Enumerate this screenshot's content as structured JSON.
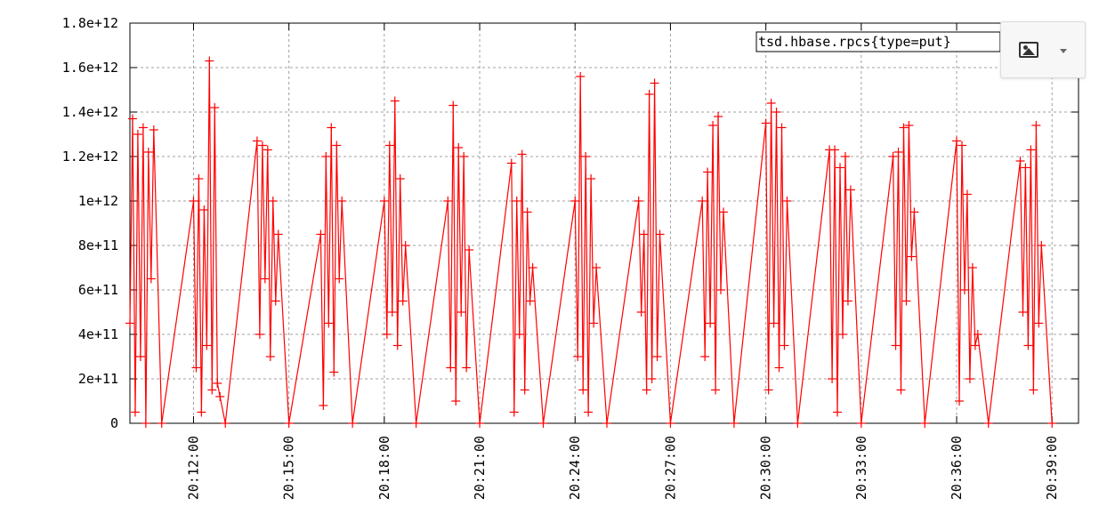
{
  "chart_data": {
    "type": "line",
    "title": "",
    "xlabel": "",
    "ylabel": "",
    "grid": true,
    "legend_placement": "top-right",
    "y_tick_labels": [
      "0",
      "2e+11",
      "4e+11",
      "6e+11",
      "8e+11",
      "1e+12",
      "1.2e+12",
      "1.4e+12",
      "1.6e+12",
      "1.8e+12"
    ],
    "y_ticks": [
      0,
      200000000000,
      400000000000,
      600000000000,
      800000000000,
      1000000000000,
      1200000000000,
      1400000000000,
      1600000000000,
      1800000000000
    ],
    "ylim": [
      0,
      1800000000000
    ],
    "x_tick_labels": [
      "20:12:00",
      "20:15:00",
      "20:18:00",
      "20:21:00",
      "20:24:00",
      "20:27:00",
      "20:30:00",
      "20:33:00",
      "20:36:00",
      "20:39:00"
    ],
    "x_ticks": [
      "20:12:00",
      "20:15:00",
      "20:18:00",
      "20:21:00",
      "20:24:00",
      "20:27:00",
      "20:30:00",
      "20:33:00",
      "20:36:00",
      "20:39:00"
    ],
    "xlim": [
      "20:10:00",
      "20:39:50"
    ],
    "series": [
      {
        "name": "tsd.hbase.rpcs{type=put}",
        "color": "#ff0000",
        "marker": "plus",
        "x": [
          "20:10:00",
          "20:10:05",
          "20:10:10",
          "20:10:15",
          "20:10:20",
          "20:10:25",
          "20:10:30",
          "20:10:35",
          "20:10:40",
          "20:10:45",
          "20:11:00",
          "20:12:00",
          "20:12:05",
          "20:12:10",
          "20:12:15",
          "20:12:20",
          "20:12:25",
          "20:12:30",
          "20:12:35",
          "20:12:40",
          "20:12:45",
          "20:12:50",
          "20:13:00",
          "20:14:00",
          "20:14:05",
          "20:14:10",
          "20:14:15",
          "20:14:20",
          "20:14:25",
          "20:14:30",
          "20:14:35",
          "20:14:40",
          "20:15:00",
          "20:16:00",
          "20:16:05",
          "20:16:10",
          "20:16:15",
          "20:16:20",
          "20:16:25",
          "20:16:30",
          "20:16:35",
          "20:16:40",
          "20:17:00",
          "20:18:00",
          "20:18:05",
          "20:18:10",
          "20:18:15",
          "20:18:20",
          "20:18:25",
          "20:18:30",
          "20:18:35",
          "20:18:40",
          "20:19:00",
          "20:20:00",
          "20:20:05",
          "20:20:10",
          "20:20:15",
          "20:20:20",
          "20:20:25",
          "20:20:30",
          "20:20:35",
          "20:20:40",
          "20:21:00",
          "20:22:00",
          "20:22:05",
          "20:22:10",
          "20:22:15",
          "20:22:20",
          "20:22:25",
          "20:22:30",
          "20:22:35",
          "20:22:40",
          "20:23:00",
          "20:24:00",
          "20:24:05",
          "20:24:10",
          "20:24:15",
          "20:24:20",
          "20:24:25",
          "20:24:30",
          "20:24:35",
          "20:24:40",
          "20:25:00",
          "20:26:00",
          "20:26:05",
          "20:26:10",
          "20:26:15",
          "20:26:20",
          "20:26:25",
          "20:26:30",
          "20:26:35",
          "20:26:40",
          "20:27:00",
          "20:28:00",
          "20:28:05",
          "20:28:10",
          "20:28:15",
          "20:28:20",
          "20:28:25",
          "20:28:30",
          "20:28:35",
          "20:28:40",
          "20:29:00",
          "20:30:00",
          "20:30:05",
          "20:30:10",
          "20:30:15",
          "20:30:20",
          "20:30:25",
          "20:30:30",
          "20:30:35",
          "20:30:40",
          "20:31:00",
          "20:32:00",
          "20:32:05",
          "20:32:10",
          "20:32:15",
          "20:32:20",
          "20:32:25",
          "20:32:30",
          "20:32:35",
          "20:32:40",
          "20:33:00",
          "20:34:00",
          "20:34:05",
          "20:34:10",
          "20:34:15",
          "20:34:20",
          "20:34:25",
          "20:34:30",
          "20:34:35",
          "20:34:40",
          "20:35:00",
          "20:36:00",
          "20:36:05",
          "20:36:10",
          "20:36:15",
          "20:36:20",
          "20:36:25",
          "20:36:30",
          "20:36:35",
          "20:36:40",
          "20:37:00",
          "20:38:00",
          "20:38:05",
          "20:38:10",
          "20:38:15",
          "20:38:20",
          "20:38:25",
          "20:38:30",
          "20:38:35",
          "20:38:40",
          "20:39:00"
        ],
        "y": [
          450000000000,
          1370000000000,
          50000000000,
          1300000000000,
          300000000000,
          1330000000000,
          0,
          1220000000000,
          650000000000,
          1320000000000,
          0,
          1000000000000,
          250000000000,
          1100000000000,
          50000000000,
          960000000000,
          350000000000,
          1630000000000,
          150000000000,
          1420000000000,
          180000000000,
          120000000000,
          0,
          1270000000000,
          400000000000,
          1250000000000,
          650000000000,
          1230000000000,
          300000000000,
          1000000000000,
          550000000000,
          850000000000,
          0,
          850000000000,
          80000000000,
          1200000000000,
          450000000000,
          1330000000000,
          230000000000,
          1250000000000,
          650000000000,
          1000000000000,
          0,
          1000000000000,
          400000000000,
          1250000000000,
          500000000000,
          1450000000000,
          350000000000,
          1100000000000,
          550000000000,
          800000000000,
          0,
          1000000000000,
          250000000000,
          1430000000000,
          100000000000,
          1240000000000,
          500000000000,
          1200000000000,
          250000000000,
          780000000000,
          0,
          1170000000000,
          50000000000,
          1000000000000,
          400000000000,
          1210000000000,
          150000000000,
          950000000000,
          550000000000,
          700000000000,
          0,
          1000000000000,
          300000000000,
          1560000000000,
          150000000000,
          1200000000000,
          50000000000,
          1100000000000,
          450000000000,
          700000000000,
          0,
          1000000000000,
          500000000000,
          850000000000,
          150000000000,
          1480000000000,
          200000000000,
          1530000000000,
          300000000000,
          850000000000,
          0,
          1000000000000,
          300000000000,
          1130000000000,
          450000000000,
          1340000000000,
          150000000000,
          1380000000000,
          600000000000,
          950000000000,
          0,
          1350000000000,
          150000000000,
          1440000000000,
          450000000000,
          1400000000000,
          250000000000,
          1330000000000,
          350000000000,
          1000000000000,
          0,
          1230000000000,
          200000000000,
          1230000000000,
          50000000000,
          1150000000000,
          400000000000,
          1200000000000,
          550000000000,
          1050000000000,
          0,
          1200000000000,
          350000000000,
          1220000000000,
          150000000000,
          1330000000000,
          550000000000,
          1340000000000,
          750000000000,
          950000000000,
          0,
          1270000000000,
          100000000000,
          1250000000000,
          600000000000,
          1030000000000,
          200000000000,
          700000000000,
          350000000000,
          400000000000,
          0,
          1180000000000,
          500000000000,
          1150000000000,
          350000000000,
          1230000000000,
          150000000000,
          1340000000000,
          450000000000,
          800000000000,
          0
        ]
      }
    ]
  }
}
